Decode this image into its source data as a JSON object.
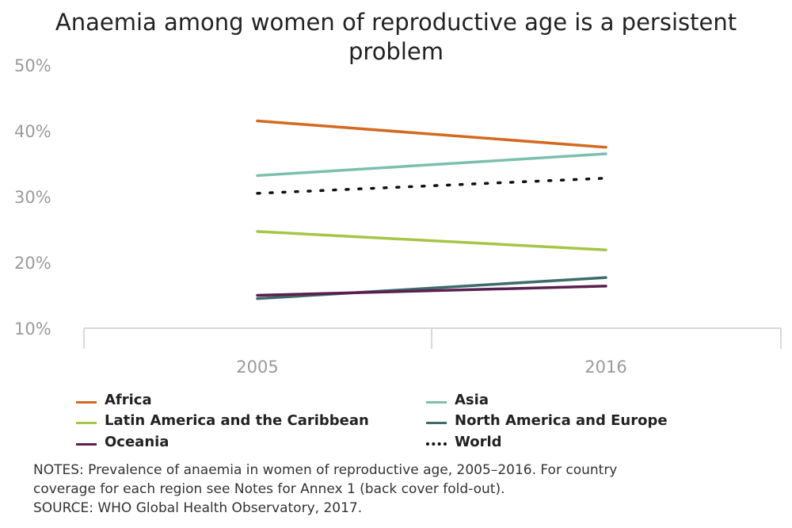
{
  "chart_data": {
    "type": "line",
    "title": "Anaemia among women of reproductive age is a persistent problem",
    "title_lines": [
      "Anaemia among women of reproductive age is a persistent",
      "problem"
    ],
    "categories": [
      "2005",
      "2016"
    ],
    "xlabel": "",
    "ylabel": "",
    "ylim": [
      10,
      50
    ],
    "yticks": [
      "10%",
      "20%",
      "30%",
      "40%",
      "50%"
    ],
    "ytick_values": [
      10,
      20,
      30,
      40,
      50
    ],
    "series": [
      {
        "name": "Africa",
        "values": [
          41.5,
          37.5
        ],
        "color": "#d4691f",
        "style": "solid"
      },
      {
        "name": "Asia",
        "values": [
          33.2,
          36.5
        ],
        "color": "#7bbfaf",
        "style": "solid"
      },
      {
        "name": "Latin America and the Caribbean",
        "values": [
          24.7,
          21.9
        ],
        "color": "#a6c545",
        "style": "solid"
      },
      {
        "name": "North America and Europe",
        "values": [
          14.5,
          17.7
        ],
        "color": "#3f6b6b",
        "style": "solid"
      },
      {
        "name": "Oceania",
        "values": [
          15.0,
          16.4
        ],
        "color": "#5a1f4f",
        "style": "solid"
      },
      {
        "name": "World",
        "values": [
          30.5,
          32.8
        ],
        "color": "#111111",
        "style": "dotted"
      }
    ]
  },
  "notes": {
    "line1": "NOTES: Prevalence of anaemia in women of reproductive age, 2005–2016. For country",
    "line2": "coverage for each region see Notes for Annex 1 (back cover fold-out).",
    "line3": "SOURCE: WHO Global Health Observatory, 2017."
  }
}
